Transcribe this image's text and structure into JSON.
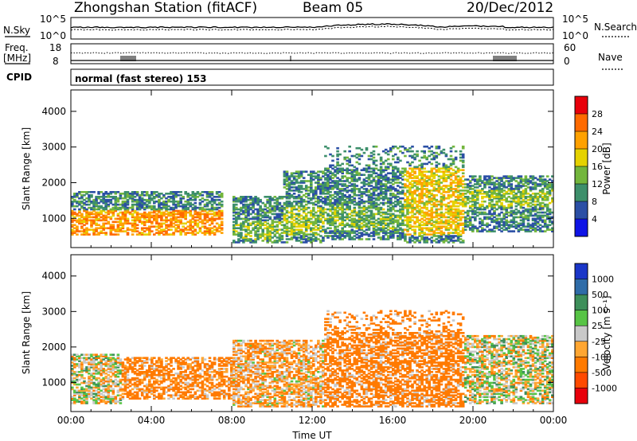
{
  "header": {
    "station_title": "Zhongshan Station (fitACF)",
    "beam_label": "Beam 05",
    "date_label": "20/Dec/2012"
  },
  "status_panels": {
    "nsky_label": "N.Sky",
    "nsky_ticks": [
      "10^5",
      "10^0"
    ],
    "nsearch_label": "N.Search",
    "nsearch_ticks": [
      "10^5",
      "10^0"
    ],
    "freq_label_line1": "Freq.",
    "freq_label_line2": "[MHz]",
    "freq_ticks": [
      "18",
      "8"
    ],
    "nave_label": "Nave",
    "nave_ticks": [
      "60",
      "0"
    ],
    "cpid_label": "CPID",
    "cpid_text": "normal (fast stereo) 153"
  },
  "chart_data": [
    {
      "type": "heatmap",
      "name": "power",
      "xlabel": "Time UT",
      "ylabel": "Slant Range [km]",
      "xlim": [
        0,
        24
      ],
      "ylim": [
        180,
        4600
      ],
      "x_ticks": [
        "00:00",
        "04:00",
        "08:00",
        "12:00",
        "16:00",
        "20:00",
        "00:00"
      ],
      "y_ticks": [
        "1000",
        "2000",
        "3000",
        "4000"
      ],
      "colorbar": {
        "label": "Power [dB]",
        "ticks": [
          "28",
          "24",
          "20",
          "16",
          "12",
          "8",
          "4"
        ],
        "colors": [
          "#e8000b",
          "#ff6a00",
          "#ffa100",
          "#e5d200",
          "#73b63c",
          "#3d8f6b",
          "#2b4fa5",
          "#0f14e6"
        ]
      },
      "echo_regions": [
        {
          "t0": 0.0,
          "t1": 7.5,
          "r0": 500,
          "r1": 1750,
          "core_r0": 500,
          "core_r1": 1200,
          "peak_db": 28
        },
        {
          "t0": 8.0,
          "t1": 10.5,
          "r0": 300,
          "r1": 1600,
          "core_r0": 400,
          "core_r1": 900,
          "peak_db": 18
        },
        {
          "t0": 10.5,
          "t1": 12.5,
          "r0": 300,
          "r1": 2300,
          "core_r0": 500,
          "core_r1": 1300,
          "peak_db": 20
        },
        {
          "t0": 12.5,
          "t1": 16.5,
          "r0": 400,
          "r1": 3000,
          "core_r0": 700,
          "core_r1": 1300,
          "peak_db": 18
        },
        {
          "t0": 16.5,
          "t1": 19.5,
          "r0": 300,
          "r1": 3000,
          "core_r0": 500,
          "core_r1": 2400,
          "peak_db": 24
        },
        {
          "t0": 19.5,
          "t1": 24.0,
          "r0": 600,
          "r1": 2200,
          "core_r0": 1300,
          "core_r1": 1800,
          "peak_db": 20
        }
      ]
    },
    {
      "type": "heatmap",
      "name": "velocity",
      "xlabel": "Time UT",
      "ylabel": "Slant Range [km]",
      "xlim": [
        0,
        24
      ],
      "ylim": [
        180,
        4600
      ],
      "x_ticks": [
        "00:00",
        "04:00",
        "08:00",
        "12:00",
        "16:00",
        "20:00",
        "00:00"
      ],
      "y_ticks": [
        "1000",
        "2000",
        "3000",
        "4000"
      ],
      "colorbar": {
        "label": "Velocity [m s⁻¹]",
        "ticks": [
          "1000",
          "500",
          "100",
          "25",
          "-25",
          "-100",
          "-500",
          "-1000"
        ],
        "colors": [
          "#1a36c8",
          "#2f6ca8",
          "#3d8f5a",
          "#57c445",
          "#c8c8c8",
          "#ffa632",
          "#ff7a00",
          "#ff4a00",
          "#e8000b"
        ]
      },
      "echo_regions": [
        {
          "t0": 0.0,
          "t1": 2.5,
          "r0": 400,
          "r1": 1800,
          "dominant_velocity": 0
        },
        {
          "t0": 2.5,
          "t1": 8.0,
          "r0": 500,
          "r1": 1700,
          "dominant_velocity": -200
        },
        {
          "t0": 8.0,
          "t1": 12.5,
          "r0": 300,
          "r1": 2200,
          "dominant_velocity": -100
        },
        {
          "t0": 12.5,
          "t1": 19.5,
          "r0": 300,
          "r1": 3000,
          "dominant_velocity": -300
        },
        {
          "t0": 19.5,
          "t1": 24.0,
          "r0": 400,
          "r1": 2300,
          "dominant_velocity": 0
        }
      ]
    }
  ]
}
